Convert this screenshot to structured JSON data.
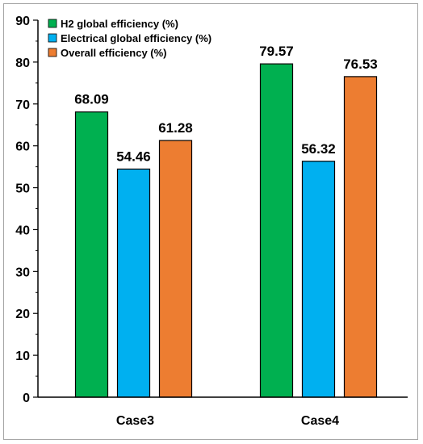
{
  "chart_data": {
    "type": "bar",
    "title": "",
    "xlabel": "",
    "ylabel": "",
    "categories": [
      "Case3",
      "Case4"
    ],
    "series": [
      {
        "name": "H2 global efficiency (%)",
        "values": [
          68.09,
          79.57
        ],
        "color": "#00b050"
      },
      {
        "name": "Electrical global efficiency (%)",
        "values": [
          54.46,
          56.32
        ],
        "color": "#00b0f0"
      },
      {
        "name": "Overall efficiency (%)",
        "values": [
          61.28,
          76.53
        ],
        "color": "#ed7d31"
      }
    ],
    "data_labels": [
      [
        "68.09",
        "79.57"
      ],
      [
        "54.46",
        "56.32"
      ],
      [
        "61.28",
        "76.53"
      ]
    ],
    "ylim": [
      0,
      90
    ],
    "yticks": [
      "0",
      "10",
      "20",
      "30",
      "40",
      "50",
      "60",
      "70",
      "80",
      "90"
    ],
    "grid": false,
    "legend_position": "top-left"
  }
}
